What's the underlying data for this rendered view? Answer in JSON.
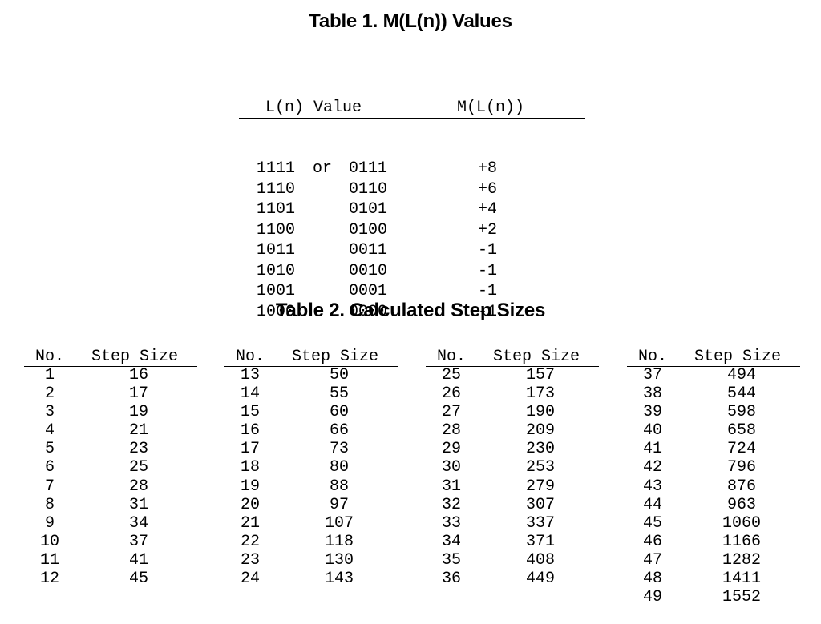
{
  "table1": {
    "title": "Table 1.  M(L(n)) Values",
    "headers": [
      "L(n) Value",
      "M(L(n))"
    ],
    "rows": [
      {
        "a": "1111",
        "or": "or",
        "b": "0111",
        "m": "+8"
      },
      {
        "a": "1110",
        "or": "",
        "b": "0110",
        "m": "+6"
      },
      {
        "a": "1101",
        "or": "",
        "b": "0101",
        "m": "+4"
      },
      {
        "a": "1100",
        "or": "",
        "b": "0100",
        "m": "+2"
      },
      {
        "a": "1011",
        "or": "",
        "b": "0011",
        "m": "-1"
      },
      {
        "a": "1010",
        "or": "",
        "b": "0010",
        "m": "-1"
      },
      {
        "a": "1001",
        "or": "",
        "b": "0001",
        "m": "-1"
      },
      {
        "a": "1000",
        "or": "",
        "b": "0000",
        "m": "-1"
      }
    ]
  },
  "table2": {
    "title": "Table 2.  Calculated Step Sizes",
    "headers": [
      "No.",
      "Step Size"
    ],
    "columns": [
      [
        [
          "1",
          "16"
        ],
        [
          "2",
          "17"
        ],
        [
          "3",
          "19"
        ],
        [
          "4",
          "21"
        ],
        [
          "5",
          "23"
        ],
        [
          "6",
          "25"
        ],
        [
          "7",
          "28"
        ],
        [
          "8",
          "31"
        ],
        [
          "9",
          "34"
        ],
        [
          "10",
          "37"
        ],
        [
          "11",
          "41"
        ],
        [
          "12",
          "45"
        ]
      ],
      [
        [
          "13",
          "50"
        ],
        [
          "14",
          "55"
        ],
        [
          "15",
          "60"
        ],
        [
          "16",
          "66"
        ],
        [
          "17",
          "73"
        ],
        [
          "18",
          "80"
        ],
        [
          "19",
          "88"
        ],
        [
          "20",
          "97"
        ],
        [
          "21",
          "107"
        ],
        [
          "22",
          "118"
        ],
        [
          "23",
          "130"
        ],
        [
          "24",
          "143"
        ]
      ],
      [
        [
          "25",
          "157"
        ],
        [
          "26",
          "173"
        ],
        [
          "27",
          "190"
        ],
        [
          "28",
          "209"
        ],
        [
          "29",
          "230"
        ],
        [
          "30",
          "253"
        ],
        [
          "31",
          "279"
        ],
        [
          "32",
          "307"
        ],
        [
          "33",
          "337"
        ],
        [
          "34",
          "371"
        ],
        [
          "35",
          "408"
        ],
        [
          "36",
          "449"
        ]
      ],
      [
        [
          "37",
          "494"
        ],
        [
          "38",
          "544"
        ],
        [
          "39",
          "598"
        ],
        [
          "40",
          "658"
        ],
        [
          "41",
          "724"
        ],
        [
          "42",
          "796"
        ],
        [
          "43",
          "876"
        ],
        [
          "44",
          "963"
        ],
        [
          "45",
          "1060"
        ],
        [
          "46",
          "1166"
        ],
        [
          "47",
          "1282"
        ],
        [
          "48",
          "1411"
        ],
        [
          "49",
          "1552"
        ]
      ]
    ]
  }
}
